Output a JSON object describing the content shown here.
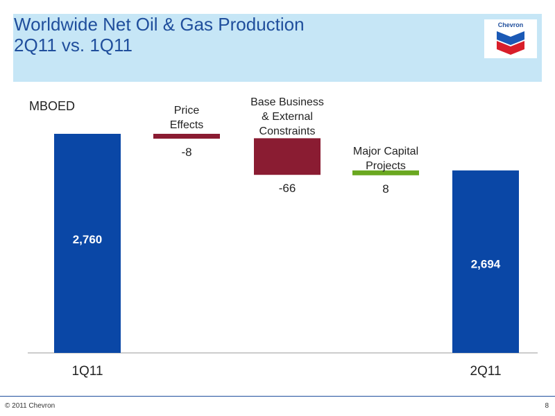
{
  "header": {
    "title_line1": "Worldwide Net Oil & Gas Production",
    "title_line2": "2Q11 vs. 1Q11",
    "logo_text": "Chevron",
    "background": "#c6e6f6",
    "title_color": "#1f4e9c"
  },
  "chart_data": {
    "type": "bar",
    "subtype": "waterfall",
    "ylabel": "MBOED",
    "categories": [
      "1Q11",
      "Price\nEffects",
      "Base Business\n& External\nConstraints",
      "Major Capital\nProjects",
      "2Q11"
    ],
    "bars": [
      {
        "category": "1Q11",
        "kind": "total",
        "value": 2760,
        "label": "2,760",
        "color": "#0a47a6"
      },
      {
        "category": "Price Effects",
        "kind": "delta",
        "value": -8,
        "label": "-8",
        "color": "#8a1c32"
      },
      {
        "category": "Base Business & External Constraints",
        "kind": "delta",
        "value": -66,
        "label": "-66",
        "color": "#8a1c32"
      },
      {
        "category": "Major Capital Projects",
        "kind": "delta",
        "value": 8,
        "label": "8",
        "color": "#6aa820"
      },
      {
        "category": "2Q11",
        "kind": "total",
        "value": 2694,
        "label": "2,694",
        "color": "#0a47a6"
      }
    ],
    "x_tick_labels": [
      "1Q11",
      "2Q11"
    ],
    "grid": false,
    "legend": "none"
  },
  "footer": {
    "copyright": "© 2011 Chevron",
    "page_number": "8"
  }
}
